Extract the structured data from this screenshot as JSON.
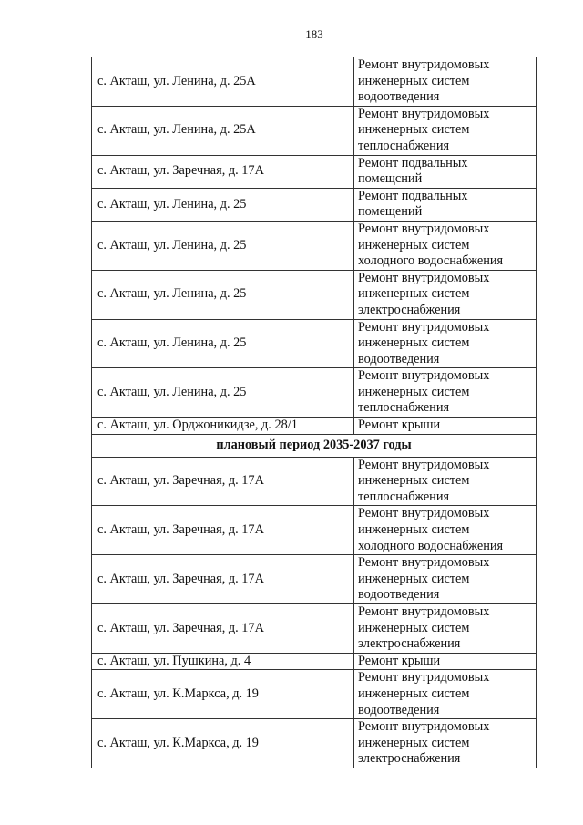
{
  "page_number": "183",
  "rows_before": [
    {
      "address": "с. Акташ, ул. Ленина, д. 25А",
      "work": [
        "Ремонт внутридомовых",
        "инженерных систем",
        "водоотведения"
      ]
    },
    {
      "address": "с. Акташ, ул. Ленина, д. 25А",
      "work": [
        "Ремонт внутридомовых",
        "инженерных систем",
        "теплоснабжения"
      ]
    },
    {
      "address": "с. Акташ, ул. Заречная, д. 17А",
      "work": [
        "Ремонт подвальных",
        "помещсний"
      ]
    },
    {
      "address": "с. Акташ, ул. Ленина, д. 25",
      "work": [
        "Ремонт подвальных",
        "помещений"
      ]
    },
    {
      "address": "с. Акташ, ул. Ленина, д. 25",
      "work": [
        "Ремонт внутридомовых",
        "инженерных систем",
        "холодного водоснабжения"
      ]
    },
    {
      "address": "с. Акташ, ул. Ленина, д. 25",
      "work": [
        "Ремонт внутридомовых",
        "инженерных систем",
        "электроснабжения"
      ]
    },
    {
      "address": "с. Акташ, ул. Ленина, д. 25",
      "work": [
        "Ремонт внутридомовых",
        "инженерных систем",
        "водоотведения"
      ]
    },
    {
      "address": "с. Акташ, ул. Ленина, д. 25",
      "work": [
        "Ремонт внутридомовых",
        "инженерных систем",
        "теплоснабжения"
      ]
    },
    {
      "address": "с. Акташ, ул. Орджоникидзе, д. 28/1",
      "work": [
        "Ремонт крыши"
      ]
    }
  ],
  "section_title": "плановый период 2035-2037 годы",
  "rows_after": [
    {
      "address": "с. Акташ, ул. Заречная, д. 17А",
      "work": [
        "Ремонт внутридомовых",
        "инженерных систем",
        "теплоснабжения"
      ]
    },
    {
      "address": "с. Акташ, ул. Заречная, д. 17А",
      "work": [
        "Ремонт внутридомовых",
        "инженерных систем",
        "холодного водоснабжения"
      ]
    },
    {
      "address": "с. Акташ, ул. Заречная, д. 17А",
      "work": [
        "Ремонт внутридомовых",
        "инженерных систем",
        "водоотведения"
      ]
    },
    {
      "address": "с. Акташ, ул. Заречная, д. 17А",
      "work": [
        "Ремонт внутридомовых",
        "инженерных систем",
        "электроснабжения"
      ]
    },
    {
      "address": "с. Акташ, ул. Пушкина, д. 4",
      "work": [
        "Ремонт крыши"
      ]
    },
    {
      "address": "с. Акташ, ул. К.Маркса, д. 19",
      "work": [
        "Ремонт внутридомовых",
        "инженерных систем",
        "водоотведения"
      ]
    },
    {
      "address": "с. Акташ, ул. К.Маркса, д. 19",
      "work": [
        "Ремонт внутридомовых",
        "инженерных систем",
        "электроснабжения"
      ]
    }
  ]
}
